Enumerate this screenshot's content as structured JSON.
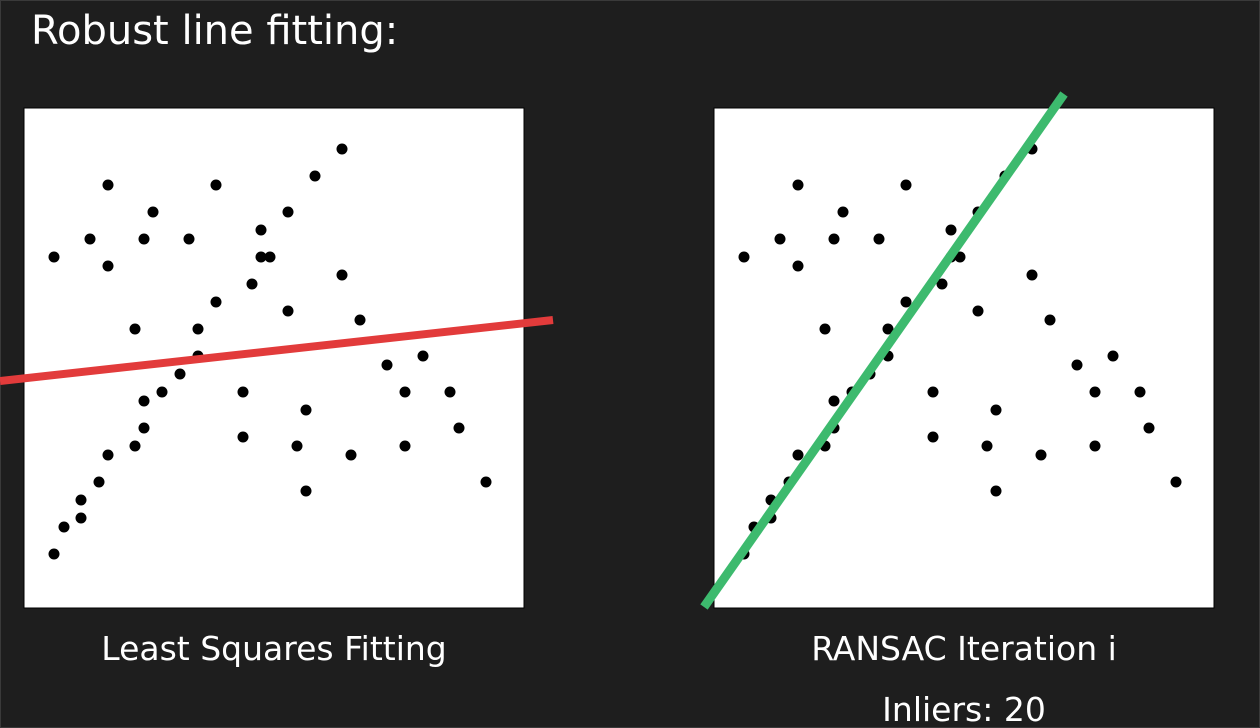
{
  "title": "Robust line fitting:",
  "panels": [
    {
      "id": "least-squares",
      "caption": "Least Squares Fitting",
      "line_color": "#e23b3b"
    },
    {
      "id": "ransac",
      "caption": "RANSAC Iteration i",
      "status": "Inliers: 20",
      "line_color": "#3dba6e"
    }
  ],
  "colors": {
    "background": "#1e1e1e",
    "panel": "#ffffff",
    "points": "#000000"
  }
}
